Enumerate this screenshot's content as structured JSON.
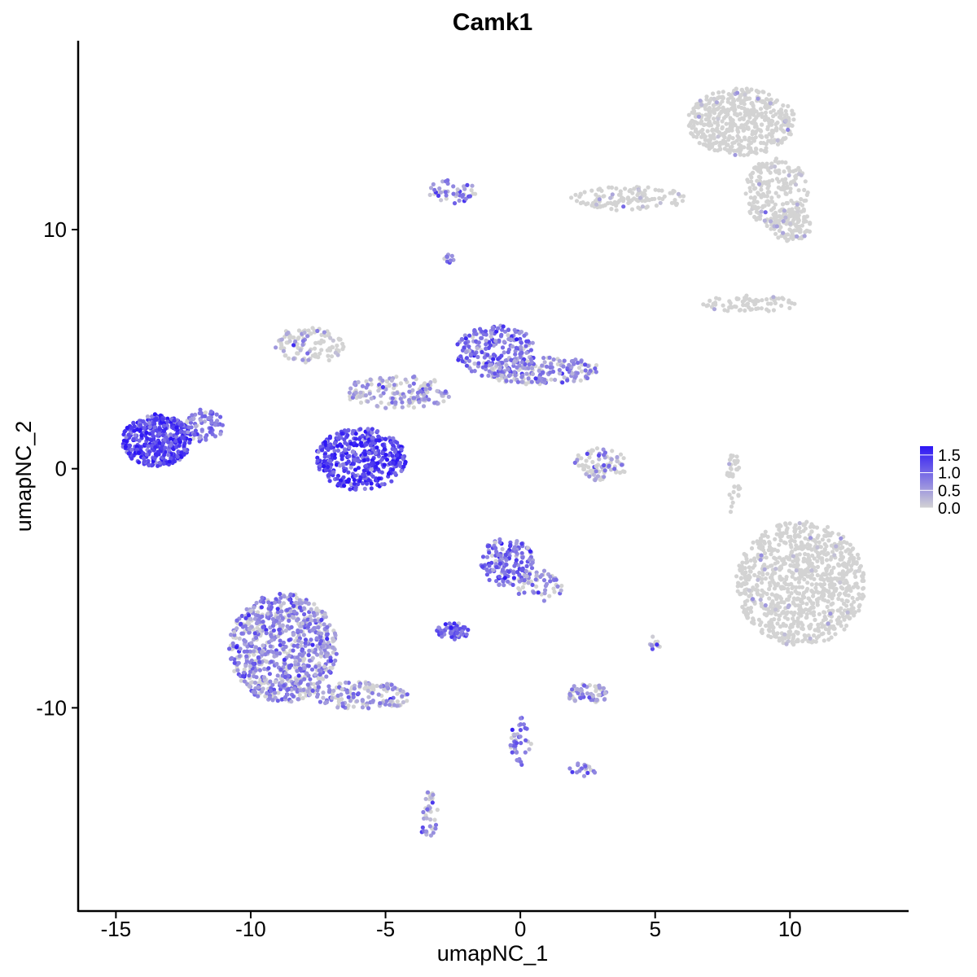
{
  "chart_data": {
    "type": "scatter",
    "title": "Camk1",
    "xlabel": "umapNC_1",
    "ylabel": "umapNC_2",
    "xlim": [
      -16.4,
      14.4
    ],
    "ylim": [
      -18.5,
      17.9
    ],
    "xticks": [
      -15,
      -10,
      -5,
      0,
      5,
      10
    ],
    "yticks": [
      10,
      0,
      -10
    ],
    "grid": false,
    "legend": {
      "position": "right",
      "labels": [
        "1.5",
        "1.0",
        "0.5",
        "0.0"
      ],
      "values": [
        1.5,
        1.0,
        0.5,
        0.0
      ],
      "min": 0,
      "max": 1.75,
      "color_low": "#d3d3d3",
      "color_high": "#2d16f5"
    },
    "colors": {
      "low": "#d3d3d3",
      "high": "#2d16f5"
    },
    "clusters": [
      {
        "name": "top-right cluster",
        "cx": 8.2,
        "cy": 14.5,
        "rx": 2.0,
        "ry": 1.4,
        "n": 500,
        "expr": 0.02
      },
      {
        "name": "top-right arm",
        "cx": 9.5,
        "cy": 11.5,
        "rx": 1.2,
        "ry": 1.5,
        "n": 220,
        "expr": 0.05
      },
      {
        "name": "top-right tail",
        "cx": 10.0,
        "cy": 10.2,
        "rx": 0.8,
        "ry": 0.7,
        "n": 90,
        "expr": 0.1
      },
      {
        "name": "top bridge",
        "cx": 4.0,
        "cy": 11.3,
        "rx": 2.2,
        "ry": 0.5,
        "n": 120,
        "expr": 0.1
      },
      {
        "name": "top-left small",
        "cx": -2.5,
        "cy": 11.6,
        "rx": 0.9,
        "ry": 0.5,
        "n": 45,
        "expr": 0.7
      },
      {
        "name": "tiny dot",
        "cx": -2.7,
        "cy": 8.8,
        "rx": 0.25,
        "ry": 0.2,
        "n": 10,
        "expr": 0.8
      },
      {
        "name": "right strip",
        "cx": 8.5,
        "cy": 6.9,
        "rx": 1.8,
        "ry": 0.35,
        "n": 70,
        "expr": 0.02
      },
      {
        "name": "center-left upper",
        "cx": -7.8,
        "cy": 5.2,
        "rx": 1.3,
        "ry": 0.8,
        "n": 110,
        "expr": 0.35
      },
      {
        "name": "center upper right",
        "cx": -0.9,
        "cy": 4.9,
        "rx": 1.5,
        "ry": 1.1,
        "n": 220,
        "expr": 0.9
      },
      {
        "name": "center band",
        "cx": 0.8,
        "cy": 4.1,
        "rx": 2.2,
        "ry": 0.6,
        "n": 200,
        "expr": 0.6
      },
      {
        "name": "center stem",
        "cx": -4.5,
        "cy": 3.2,
        "rx": 2.0,
        "ry": 0.7,
        "n": 160,
        "expr": 0.55
      },
      {
        "name": "center blob",
        "cx": -5.9,
        "cy": 0.4,
        "rx": 1.7,
        "ry": 1.3,
        "n": 420,
        "expr": 1.3
      },
      {
        "name": "left blob",
        "cx": -13.5,
        "cy": 1.2,
        "rx": 1.3,
        "ry": 1.1,
        "n": 400,
        "expr": 1.35
      },
      {
        "name": "left arm",
        "cx": -11.7,
        "cy": 1.8,
        "rx": 0.7,
        "ry": 0.7,
        "n": 70,
        "expr": 0.9
      },
      {
        "name": "mid cluster",
        "cx": 3.0,
        "cy": 0.2,
        "rx": 1.0,
        "ry": 0.7,
        "n": 85,
        "expr": 0.5
      },
      {
        "name": "far right cluster",
        "cx": 10.4,
        "cy": -4.8,
        "rx": 2.4,
        "ry": 2.6,
        "n": 900,
        "expr": 0.02
      },
      {
        "name": "right vertical streak",
        "cx": 7.9,
        "cy": -0.6,
        "rx": 0.25,
        "ry": 1.4,
        "n": 40,
        "expr": 0.05
      },
      {
        "name": "lower center",
        "cx": -0.5,
        "cy": -3.9,
        "rx": 1.0,
        "ry": 1.0,
        "n": 160,
        "expr": 0.9
      },
      {
        "name": "lower center tail",
        "cx": 0.7,
        "cy": -4.9,
        "rx": 0.9,
        "ry": 0.7,
        "n": 60,
        "expr": 0.6
      },
      {
        "name": "small cluster",
        "cx": -2.5,
        "cy": -6.8,
        "rx": 0.6,
        "ry": 0.35,
        "n": 60,
        "expr": 1.0
      },
      {
        "name": "lower left",
        "cx": -8.8,
        "cy": -7.5,
        "rx": 2.0,
        "ry": 2.3,
        "n": 800,
        "expr": 0.7
      },
      {
        "name": "lower left arm",
        "cx": -5.8,
        "cy": -9.5,
        "rx": 1.8,
        "ry": 0.6,
        "n": 140,
        "expr": 0.6
      },
      {
        "name": "lower small right",
        "cx": 2.5,
        "cy": -9.4,
        "rx": 0.8,
        "ry": 0.4,
        "n": 70,
        "expr": 0.55
      },
      {
        "name": "lower bottom",
        "cx": -3.4,
        "cy": -14.5,
        "rx": 0.35,
        "ry": 1.0,
        "n": 40,
        "expr": 0.6
      },
      {
        "name": "lower branch",
        "cx": 0.0,
        "cy": -11.4,
        "rx": 0.4,
        "ry": 1.0,
        "n": 40,
        "expr": 0.9
      },
      {
        "name": "lower branch right",
        "cx": 2.3,
        "cy": -12.6,
        "rx": 0.5,
        "ry": 0.3,
        "n": 20,
        "expr": 0.8
      },
      {
        "name": "right small",
        "cx": 5.0,
        "cy": -7.3,
        "rx": 0.2,
        "ry": 0.35,
        "n": 12,
        "expr": 0.5
      }
    ],
    "note": "Points are approximated per cluster (UMAP feature plot); colour encodes Camk1 expression from 0 (grey) to ~1.75 (blue)."
  }
}
